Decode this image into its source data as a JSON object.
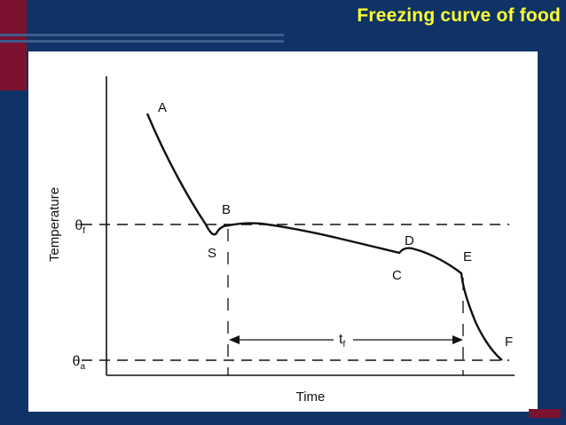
{
  "slide": {
    "title": "Freezing curve of food",
    "colors": {
      "background": "#0f3366",
      "accent": "#7a1230",
      "title": "#ffff33"
    }
  },
  "diagram": {
    "y_axis_label": "Temperature",
    "x_axis_label": "Time",
    "theta_f": {
      "symbol": "θ",
      "subscript": "f"
    },
    "theta_a": {
      "symbol": "θ",
      "subscript": "a"
    },
    "freezing_time": {
      "symbol": "t",
      "subscript": "f"
    },
    "points": {
      "A": "A",
      "B": "B",
      "S": "S",
      "C": "C",
      "D": "D",
      "E": "E",
      "F": "F"
    }
  }
}
